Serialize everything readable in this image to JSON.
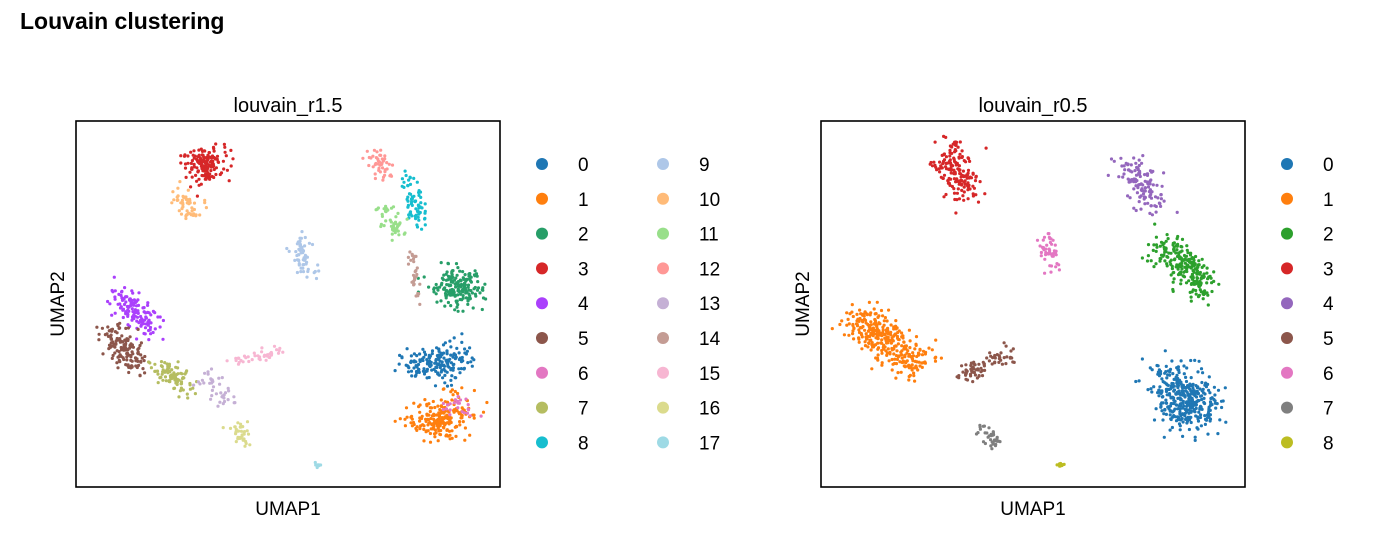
{
  "title": "Louvain clustering",
  "chart_data": [
    {
      "type": "scatter",
      "title": "louvain_r1.5",
      "xlabel": "UMAP1",
      "ylabel": "UMAP2",
      "legend_position": "right",
      "legend_columns": 2,
      "grid": false,
      "series": [
        {
          "name": "0",
          "color": "#1f77b4",
          "x": [
            0.8,
            0.86,
            0.9
          ],
          "y": [
            0.34,
            0.32,
            0.38
          ],
          "spread": [
            0.06,
            0.04
          ],
          "n": 180
        },
        {
          "name": "1",
          "color": "#ff7f0e",
          "x": [
            0.83,
            0.86,
            0.9
          ],
          "y": [
            0.19,
            0.17,
            0.23
          ],
          "spread": [
            0.065,
            0.05
          ],
          "n": 220
        },
        {
          "name": "2",
          "color": "#279e68",
          "x": [
            0.88,
            0.9,
            0.92
          ],
          "y": [
            0.57,
            0.55,
            0.53
          ],
          "spread": [
            0.055,
            0.055
          ],
          "n": 190
        },
        {
          "name": "3",
          "color": "#d62728",
          "x": [
            0.29,
            0.31,
            0.33
          ],
          "y": [
            0.9,
            0.86,
            0.92
          ],
          "spread": [
            0.045,
            0.045
          ],
          "n": 150
        },
        {
          "name": "4",
          "color": "#aa40fc",
          "x": [
            0.11,
            0.14,
            0.18
          ],
          "y": [
            0.52,
            0.47,
            0.44
          ],
          "spread": [
            0.04,
            0.04
          ],
          "n": 130
        },
        {
          "name": "5",
          "color": "#8c564b",
          "x": [
            0.08,
            0.11,
            0.14
          ],
          "y": [
            0.42,
            0.38,
            0.33
          ],
          "spread": [
            0.04,
            0.04
          ],
          "n": 140
        },
        {
          "name": "6",
          "color": "#e377c2",
          "x": [
            0.87,
            0.91,
            0.93
          ],
          "y": [
            0.21,
            0.24,
            0.19
          ],
          "spread": [
            0.02,
            0.02
          ],
          "n": 25
        },
        {
          "name": "7",
          "color": "#b5bd61",
          "x": [
            0.2,
            0.23,
            0.26
          ],
          "y": [
            0.33,
            0.31,
            0.27
          ],
          "spread": [
            0.035,
            0.03
          ],
          "n": 90
        },
        {
          "name": "8",
          "color": "#17becf",
          "x": [
            0.78,
            0.8,
            0.81
          ],
          "y": [
            0.85,
            0.78,
            0.72
          ],
          "spread": [
            0.025,
            0.035
          ],
          "n": 70
        },
        {
          "name": "9",
          "color": "#aec7e8",
          "x": [
            0.53,
            0.53,
            0.55
          ],
          "y": [
            0.68,
            0.63,
            0.59
          ],
          "spread": [
            0.025,
            0.03
          ],
          "n": 60
        },
        {
          "name": "10",
          "color": "#ffbb78",
          "x": [
            0.24,
            0.26,
            0.28
          ],
          "y": [
            0.8,
            0.77,
            0.75
          ],
          "spread": [
            0.03,
            0.025
          ],
          "n": 50
        },
        {
          "name": "11",
          "color": "#98df8a",
          "x": [
            0.72,
            0.74,
            0.76
          ],
          "y": [
            0.76,
            0.72,
            0.7
          ],
          "spread": [
            0.025,
            0.025
          ],
          "n": 50
        },
        {
          "name": "12",
          "color": "#ff9896",
          "x": [
            0.71,
            0.72,
            0.74
          ],
          "y": [
            0.92,
            0.88,
            0.84
          ],
          "spread": [
            0.025,
            0.025
          ],
          "n": 45
        },
        {
          "name": "13",
          "color": "#c5b0d5",
          "x": [
            0.3,
            0.33,
            0.36
          ],
          "y": [
            0.31,
            0.26,
            0.23
          ],
          "spread": [
            0.025,
            0.025
          ],
          "n": 40
        },
        {
          "name": "14",
          "color": "#c49c94",
          "x": [
            0.79,
            0.8,
            0.81
          ],
          "y": [
            0.64,
            0.58,
            0.51
          ],
          "spread": [
            0.01,
            0.025
          ],
          "n": 30
        },
        {
          "name": "15",
          "color": "#f7b6d2",
          "x": [
            0.37,
            0.44,
            0.48
          ],
          "y": [
            0.34,
            0.36,
            0.37
          ],
          "spread": [
            0.015,
            0.015
          ],
          "n": 40
        },
        {
          "name": "16",
          "color": "#dbdb8d",
          "x": [
            0.38,
            0.39,
            0.4
          ],
          "y": [
            0.17,
            0.14,
            0.12
          ],
          "spread": [
            0.02,
            0.02
          ],
          "n": 35
        },
        {
          "name": "17",
          "color": "#9edae5",
          "x": [
            0.56,
            0.57,
            0.58
          ],
          "y": [
            0.06,
            0.06,
            0.06
          ],
          "spread": [
            0.008,
            0.005
          ],
          "n": 10
        }
      ]
    },
    {
      "type": "scatter",
      "title": "louvain_r0.5",
      "xlabel": "UMAP1",
      "ylabel": "UMAP2",
      "legend_position": "right",
      "legend_columns": 1,
      "grid": false,
      "series": [
        {
          "name": "0",
          "color": "#1f77b4",
          "x": [
            0.83,
            0.86,
            0.89
          ],
          "y": [
            0.3,
            0.24,
            0.18
          ],
          "spread": [
            0.07,
            0.06
          ],
          "n": 380
        },
        {
          "name": "1",
          "color": "#ff7f0e",
          "x": [
            0.09,
            0.15,
            0.23
          ],
          "y": [
            0.46,
            0.4,
            0.33
          ],
          "spread": [
            0.055,
            0.05
          ],
          "n": 330
        },
        {
          "name": "2",
          "color": "#2ca02c",
          "x": [
            0.8,
            0.86,
            0.91
          ],
          "y": [
            0.66,
            0.6,
            0.55
          ],
          "spread": [
            0.04,
            0.05
          ],
          "n": 230
        },
        {
          "name": "3",
          "color": "#d62728",
          "x": [
            0.3,
            0.32,
            0.34
          ],
          "y": [
            0.91,
            0.86,
            0.81
          ],
          "spread": [
            0.045,
            0.05
          ],
          "n": 170
        },
        {
          "name": "4",
          "color": "#9467bd",
          "x": [
            0.72,
            0.76,
            0.78
          ],
          "y": [
            0.88,
            0.82,
            0.77
          ],
          "spread": [
            0.04,
            0.04
          ],
          "n": 120
        },
        {
          "name": "5",
          "color": "#8c564b",
          "x": [
            0.33,
            0.38,
            0.45
          ],
          "y": [
            0.3,
            0.33,
            0.36
          ],
          "spread": [
            0.025,
            0.025
          ],
          "n": 80
        },
        {
          "name": "6",
          "color": "#e377c2",
          "x": [
            0.53,
            0.54,
            0.55
          ],
          "y": [
            0.68,
            0.64,
            0.6
          ],
          "spread": [
            0.02,
            0.025
          ],
          "n": 50
        },
        {
          "name": "7",
          "color": "#7f7f7f",
          "x": [
            0.38,
            0.4,
            0.41
          ],
          "y": [
            0.17,
            0.14,
            0.12
          ],
          "spread": [
            0.02,
            0.02
          ],
          "n": 35
        },
        {
          "name": "8",
          "color": "#bcbd22",
          "x": [
            0.56,
            0.57,
            0.58
          ],
          "y": [
            0.06,
            0.06,
            0.06
          ],
          "spread": [
            0.008,
            0.005
          ],
          "n": 10
        }
      ]
    }
  ]
}
